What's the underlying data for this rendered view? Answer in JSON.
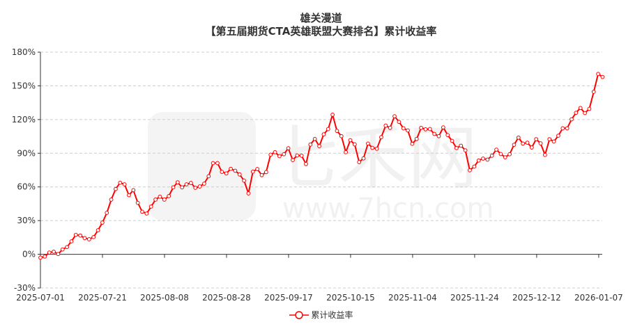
{
  "chart_data": {
    "type": "line",
    "title": "雄关漫道",
    "subtitle": "【第五届期货CTA英雄联盟大赛排名】累计收益率",
    "xlabel": "",
    "ylabel": "",
    "ylim": [
      -30,
      180
    ],
    "y_ticks": [
      "-30%",
      "0%",
      "30%",
      "60%",
      "90%",
      "120%",
      "150%",
      "180%"
    ],
    "y_tick_values": [
      -30,
      0,
      30,
      60,
      90,
      120,
      150,
      180
    ],
    "x_ticks": [
      "2025-07-01",
      "2025-07-21",
      "2025-08-08",
      "2025-08-28",
      "2025-09-17",
      "2025-10-15",
      "2025-11-04",
      "2025-11-24",
      "2025-12-12",
      "2026-01-07"
    ],
    "grid": "horizontal dashed",
    "legend_position": "bottom-center",
    "series": [
      {
        "name": "累计收益率",
        "color": "#ff0000",
        "values": [
          -3,
          -2,
          1.5,
          2.3,
          0.2,
          4.3,
          6.4,
          11.5,
          17.3,
          16.7,
          14.4,
          13.4,
          15.3,
          21.4,
          28.2,
          36.9,
          48.7,
          58.1,
          63.7,
          62.3,
          52.6,
          57.1,
          45.8,
          37.9,
          36.3,
          42.5,
          48.7,
          51.3,
          48.7,
          51.8,
          59.6,
          64.1,
          59.6,
          62.3,
          63.5,
          59.2,
          60.4,
          62.9,
          69.5,
          81.2,
          81.2,
          73.4,
          72.0,
          76.1,
          74.4,
          71.1,
          65.6,
          54.2,
          73.6,
          75.9,
          70.5,
          73.2,
          88.7,
          90.9,
          87.4,
          89.1,
          94.4,
          83.9,
          88.0,
          87.8,
          80.4,
          97.7,
          102.7,
          96.3,
          106.8,
          111.5,
          124.3,
          109.9,
          105.2,
          90.9,
          101.6,
          97.9,
          82.1,
          85.4,
          98.6,
          94.8,
          94.0,
          104.3,
          114.6,
          112.6,
          122.9,
          117.9,
          112.2,
          110.3,
          98.4,
          102.7,
          112.6,
          111.3,
          111.5,
          107.2,
          105.2,
          113.0,
          106.2,
          101.0,
          94.6,
          96.7,
          92.6,
          74.8,
          78.1,
          83.5,
          85.2,
          84.3,
          87.8,
          93.2,
          89.3,
          86.4,
          89.1,
          97.5,
          103.9,
          98.6,
          99.4,
          95.1,
          102.5,
          98.8,
          88.5,
          102.5,
          100.4,
          105.6,
          112.2,
          112.2,
          120.2,
          126.0,
          130.3,
          125.8,
          129.5,
          144.7,
          160.6,
          157.9
        ]
      }
    ]
  },
  "watermark": {
    "logo_text": "七禾网",
    "url_text": "www.7hcn.com"
  }
}
